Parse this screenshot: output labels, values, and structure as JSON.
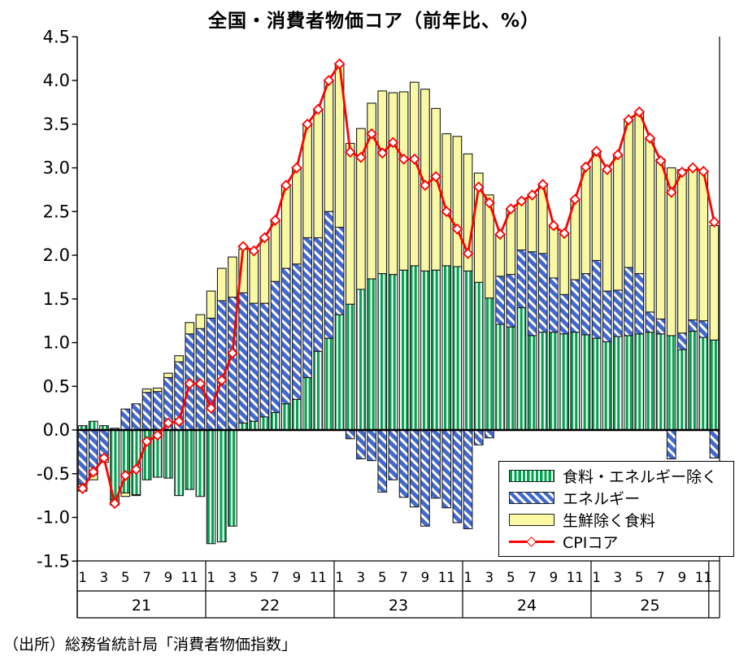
{
  "title": "全国・消費者物価コア（前年比、%）",
  "source": "（出所）総務省統計局「消費者物価指数」",
  "legend": {
    "position": "lower-right"
  },
  "chart_data": {
    "type": "bar",
    "subtype": "stacked-bars-with-line-overlay",
    "title": "全国・消費者物価コア（前年比、%）",
    "xlabel": "",
    "ylabel": "",
    "ylim": [
      -1.5,
      4.5
    ],
    "ytick_step": 0.5,
    "grid": false,
    "legend_position": "lower-right",
    "x_years": [
      "21",
      "22",
      "23",
      "24",
      "25"
    ],
    "months_per_year": 12,
    "x_month_ticks": [
      "1",
      "3",
      "5",
      "7",
      "9",
      "11"
    ],
    "axis_color": "#000000",
    "series": [
      {
        "name": "食料・エネルギー除く",
        "type": "bar",
        "pattern": "vertical-stripes",
        "color": "#00A44E",
        "values": [
          0.05,
          0.1,
          0.05,
          -0.8,
          -0.72,
          -0.74,
          -0.57,
          -0.54,
          -0.55,
          -0.75,
          -0.68,
          -0.76,
          -1.3,
          -1.28,
          -1.1,
          0.08,
          0.1,
          0.15,
          0.2,
          0.3,
          0.35,
          0.6,
          0.9,
          1.05,
          1.32,
          1.44,
          1.61,
          1.73,
          1.79,
          1.78,
          1.83,
          1.88,
          1.82,
          1.83,
          1.88,
          1.87,
          1.82,
          1.69,
          1.51,
          1.21,
          1.18,
          1.4,
          1.08,
          1.12,
          1.12,
          1.1,
          1.12,
          1.09,
          1.05,
          1.01,
          1.07,
          1.08,
          1.1,
          1.12,
          1.1,
          1.08,
          0.92,
          1.13,
          1.06,
          1.03
        ]
      },
      {
        "name": "エネルギー",
        "type": "bar",
        "pattern": "diagonal-stripes",
        "color": "#4169CE",
        "values": [
          -0.62,
          -0.51,
          -0.34,
          0.02,
          0.24,
          0.3,
          0.43,
          0.44,
          0.6,
          0.78,
          1.1,
          1.16,
          1.28,
          1.48,
          1.52,
          1.49,
          1.35,
          1.3,
          1.5,
          1.55,
          1.55,
          1.6,
          1.3,
          1.45,
          1.0,
          -0.1,
          -0.33,
          -0.35,
          -0.71,
          -0.57,
          -0.77,
          -0.88,
          -1.1,
          -0.78,
          -0.89,
          -1.06,
          -1.13,
          -0.17,
          -0.09,
          0.55,
          0.6,
          0.66,
          0.96,
          0.9,
          0.62,
          0.45,
          0.6,
          0.7,
          0.89,
          0.58,
          0.53,
          0.78,
          0.69,
          0.23,
          0.17,
          -0.33,
          0.19,
          0.13,
          0.19,
          -0.32
        ]
      },
      {
        "name": "生鮮除く食料",
        "type": "bar",
        "pattern": "solid",
        "color": "#F9F9A3",
        "values": [
          -0.08,
          -0.06,
          -0.03,
          -0.06,
          -0.04,
          -0.01,
          0.04,
          0.04,
          0.05,
          0.07,
          0.13,
          0.16,
          0.31,
          0.37,
          0.46,
          0.5,
          0.6,
          0.75,
          0.7,
          0.95,
          1.1,
          1.3,
          1.47,
          1.5,
          1.87,
          1.84,
          1.84,
          2.01,
          2.09,
          2.08,
          2.04,
          2.1,
          2.08,
          1.85,
          1.51,
          1.49,
          1.34,
          1.25,
          1.18,
          0.48,
          0.75,
          0.56,
          0.65,
          0.79,
          0.6,
          0.7,
          0.92,
          1.22,
          1.25,
          1.39,
          1.55,
          1.69,
          1.85,
          1.99,
          1.83,
          1.92,
          1.87,
          1.74,
          1.71,
          1.31
        ]
      },
      {
        "name": "CPIコア",
        "type": "line",
        "marker": "diamond",
        "color": "#FF0000",
        "values": [
          -0.67,
          -0.48,
          -0.32,
          -0.84,
          -0.52,
          -0.45,
          -0.13,
          -0.06,
          0.08,
          0.1,
          0.53,
          0.53,
          0.25,
          0.57,
          0.88,
          2.1,
          2.05,
          2.2,
          2.4,
          2.8,
          3.0,
          3.5,
          3.67,
          4.0,
          4.19,
          3.18,
          3.12,
          3.39,
          3.17,
          3.29,
          3.1,
          3.1,
          2.8,
          2.9,
          2.5,
          2.3,
          2.02,
          2.78,
          2.6,
          2.24,
          2.53,
          2.62,
          2.69,
          2.81,
          2.34,
          2.25,
          2.64,
          3.01,
          3.19,
          2.98,
          3.15,
          3.55,
          3.64,
          3.34,
          3.08,
          2.72,
          2.95,
          3.0,
          2.96,
          2.38
        ]
      }
    ]
  }
}
